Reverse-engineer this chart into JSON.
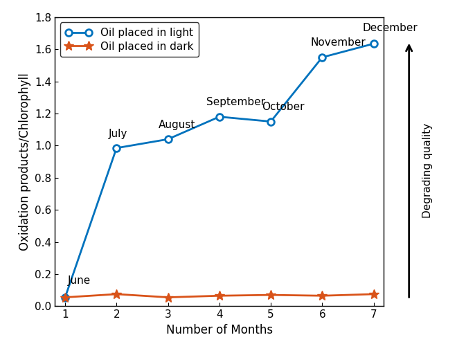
{
  "x": [
    1,
    2,
    3,
    4,
    5,
    6,
    7
  ],
  "light_y": [
    0.055,
    0.985,
    1.04,
    1.18,
    1.15,
    1.55,
    1.635
  ],
  "dark_y": [
    0.055,
    0.075,
    0.055,
    0.065,
    0.07,
    0.065,
    0.075
  ],
  "light_color": "#0072BD",
  "dark_color": "#D95319",
  "light_label": "Oil placed in light",
  "dark_label": "Oil placed in dark",
  "xlabel": "Number of Months",
  "ylabel": "Oxidation products/Chlorophyll",
  "ylim": [
    0,
    1.8
  ],
  "xlim": [
    0.8,
    7.2
  ],
  "yticks": [
    0,
    0.2,
    0.4,
    0.6,
    0.8,
    1.0,
    1.2,
    1.4,
    1.6,
    1.8
  ],
  "xticks": [
    1,
    2,
    3,
    4,
    5,
    6,
    7
  ],
  "month_labels": [
    "June",
    "July",
    "August",
    "September",
    "October",
    "November",
    "December"
  ],
  "side_label": "Degrading quality",
  "figsize": [
    6.6,
    4.97
  ],
  "dpi": 100
}
